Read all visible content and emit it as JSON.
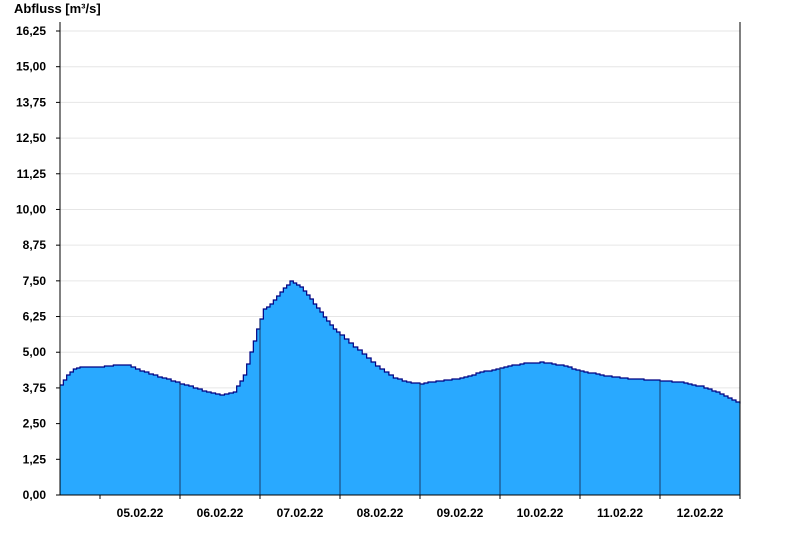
{
  "chart_data": {
    "type": "area",
    "ylabel": "Abfluss [m³/s]",
    "ylim": [
      0,
      16.25
    ],
    "y_ticks": [
      {
        "value": 0,
        "label": "0,00"
      },
      {
        "value": 1.25,
        "label": "1,25"
      },
      {
        "value": 2.5,
        "label": "2,50"
      },
      {
        "value": 3.75,
        "label": "3,75"
      },
      {
        "value": 5.0,
        "label": "5,00"
      },
      {
        "value": 6.25,
        "label": "6,25"
      },
      {
        "value": 7.5,
        "label": "7,50"
      },
      {
        "value": 8.75,
        "label": "8,75"
      },
      {
        "value": 10.0,
        "label": "10,00"
      },
      {
        "value": 11.25,
        "label": "11,25"
      },
      {
        "value": 12.5,
        "label": "12,50"
      },
      {
        "value": 13.75,
        "label": "13,75"
      },
      {
        "value": 15.0,
        "label": "15,00"
      },
      {
        "value": 16.25,
        "label": "16,25"
      }
    ],
    "x_unit": "days",
    "xlim": [
      "04.02.22 12:00",
      "12.02.22 24:00"
    ],
    "day_labels": [
      "05.02.22",
      "06.02.22",
      "07.02.22",
      "08.02.22",
      "09.02.22",
      "10.02.22",
      "11.02.22",
      "12.02.22"
    ],
    "day_boundaries": [
      "05.02.22 24:00",
      "06.02.22 24:00",
      "07.02.22 24:00",
      "08.02.22 24:00",
      "09.02.22 24:00",
      "10.02.22 24:00",
      "11.02.22 24:00"
    ],
    "grid": true,
    "series": [
      {
        "x": [
          "04.02.22 12:00",
          "04.02.22 14:00",
          "04.02.22 16:00",
          "04.02.22 18:00",
          "04.02.22 21:00",
          "05.02.22 00:00",
          "05.02.22 04:00",
          "05.02.22 08:00",
          "05.02.22 12:00",
          "05.02.22 16:00",
          "05.02.22 20:00",
          "06.02.22 00:00",
          "06.02.22 04:00",
          "06.02.22 08:00",
          "06.02.22 12:00",
          "06.02.22 16:00",
          "06.02.22 19:00",
          "06.02.22 21:00",
          "06.02.22 23:00",
          "07.02.22 01:00",
          "07.02.22 03:00",
          "07.02.22 06:00",
          "07.02.22 09:00",
          "07.02.22 12:00",
          "07.02.22 14:00",
          "07.02.22 16:00",
          "07.02.22 18:00",
          "07.02.22 20:00",
          "07.02.22 22:00",
          "08.02.22 00:00",
          "08.02.22 04:00",
          "08.02.22 08:00",
          "08.02.22 12:00",
          "08.02.22 16:00",
          "08.02.22 20:00",
          "09.02.22 00:00",
          "09.02.22 06:00",
          "09.02.22 12:00",
          "09.02.22 18:00",
          "10.02.22 00:00",
          "10.02.22 06:00",
          "10.02.22 12:00",
          "10.02.22 18:00",
          "11.02.22 00:00",
          "11.02.22 06:00",
          "11.02.22 12:00",
          "11.02.22 18:00",
          "12.02.22 00:00",
          "12.02.22 06:00",
          "12.02.22 12:00",
          "12.02.22 18:00",
          "12.02.22 24:00"
        ],
        "y": [
          3.85,
          4.2,
          4.4,
          4.5,
          4.5,
          4.5,
          4.55,
          4.55,
          4.35,
          4.2,
          4.05,
          3.9,
          3.75,
          3.6,
          3.5,
          3.6,
          4.2,
          5.0,
          5.8,
          6.5,
          6.7,
          7.1,
          7.5,
          7.3,
          7.0,
          6.7,
          6.4,
          6.1,
          5.8,
          5.6,
          5.2,
          4.8,
          4.4,
          4.1,
          3.95,
          3.9,
          4.0,
          4.1,
          4.3,
          4.45,
          4.6,
          4.65,
          4.55,
          4.35,
          4.2,
          4.1,
          4.05,
          4.0,
          3.95,
          3.8,
          3.55,
          3.2
        ]
      }
    ],
    "colors": {
      "fill": "#29a9ff",
      "line": "#000080",
      "grid": "#e6e6e6",
      "day_separator": "#1a3a6a",
      "axis": "#000000"
    }
  }
}
